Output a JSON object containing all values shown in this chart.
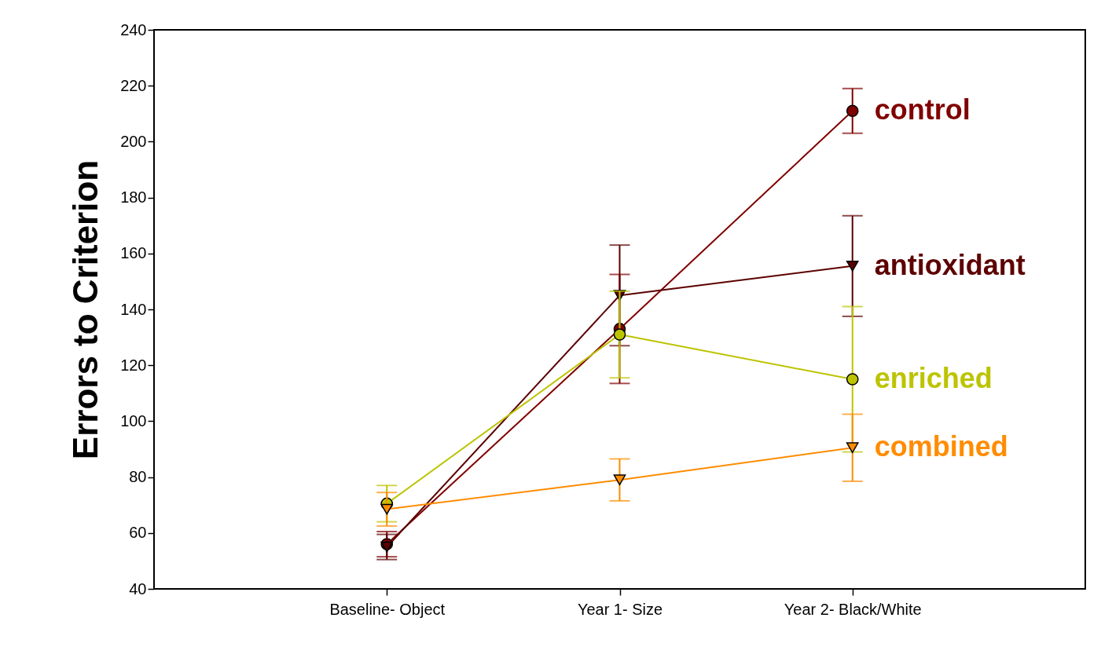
{
  "chart_data": {
    "type": "line",
    "ylabel": "Errors to Criterion",
    "categories": [
      "Baseline- Object",
      "Year 1- Size",
      "Year 2- Black/White"
    ],
    "ylim": [
      40,
      240
    ],
    "yticks": [
      40,
      60,
      80,
      100,
      120,
      140,
      160,
      180,
      200,
      220,
      240
    ],
    "grid": false,
    "series": [
      {
        "name": "control",
        "color": "#800000",
        "marker": "circle",
        "values": [
          56,
          133,
          211
        ],
        "errors": [
          4.5,
          19.5,
          8
        ]
      },
      {
        "name": "antioxidant",
        "color": "#5c0000",
        "marker": "triangle",
        "values": [
          55,
          145,
          155.5
        ],
        "errors": [
          4.5,
          18,
          18
        ]
      },
      {
        "name": "enriched",
        "color": "#bcc400",
        "marker": "circle",
        "values": [
          70.5,
          131,
          115
        ],
        "errors": [
          6.5,
          15.5,
          26
        ]
      },
      {
        "name": "combined",
        "color": "#ff8c00",
        "marker": "triangle",
        "values": [
          68.5,
          79,
          90.5
        ],
        "errors": [
          6,
          7.5,
          12
        ]
      }
    ]
  }
}
